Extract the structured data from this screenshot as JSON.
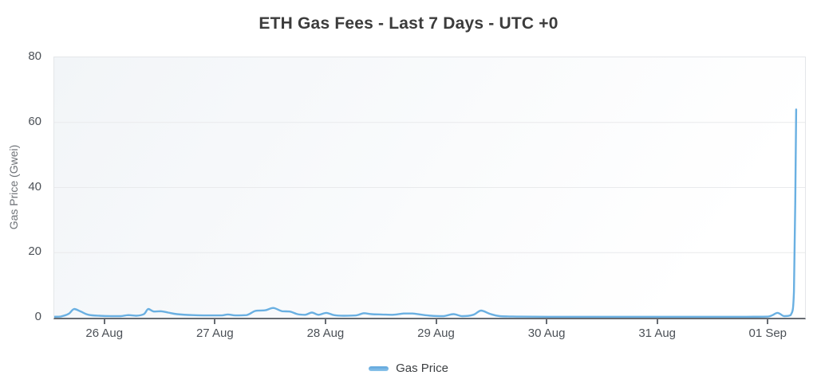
{
  "chart_data": {
    "type": "line",
    "title": "ETH Gas Fees - Last 7 Days - UTC +0",
    "ylabel": "Gas Price (Gwei)",
    "xlabel": "",
    "y_ticks": [
      0,
      20,
      40,
      60,
      80
    ],
    "y_range": [
      0,
      80
    ],
    "x_range_days": [
      -0.46,
      6.33
    ],
    "x_ticks": {
      "positions": [
        0,
        1,
        2,
        3,
        4,
        5,
        6
      ],
      "labels": [
        "26 Aug",
        "27 Aug",
        "28 Aug",
        "29 Aug",
        "30 Aug",
        "31 Aug",
        "01 Sep"
      ]
    },
    "grid": "horizontal-only",
    "legend_position": "bottom-center",
    "series": [
      {
        "name": "Gas Price",
        "color": "#6ab0e2",
        "points_day_gwei": [
          [
            -0.46,
            0.3
          ],
          [
            -0.4,
            0.4
          ],
          [
            -0.33,
            1.2
          ],
          [
            -0.28,
            2.7
          ],
          [
            -0.22,
            1.9
          ],
          [
            -0.15,
            0.9
          ],
          [
            -0.05,
            0.6
          ],
          [
            0.05,
            0.5
          ],
          [
            0.14,
            0.5
          ],
          [
            0.21,
            0.8
          ],
          [
            0.28,
            0.6
          ],
          [
            0.35,
            1.1
          ],
          [
            0.39,
            2.7
          ],
          [
            0.44,
            1.9
          ],
          [
            0.5,
            2.0
          ],
          [
            0.57,
            1.6
          ],
          [
            0.65,
            1.1
          ],
          [
            0.79,
            0.8
          ],
          [
            0.93,
            0.7
          ],
          [
            1.05,
            0.7
          ],
          [
            1.11,
            1.0
          ],
          [
            1.18,
            0.7
          ],
          [
            1.28,
            0.8
          ],
          [
            1.36,
            2.1
          ],
          [
            1.45,
            2.3
          ],
          [
            1.52,
            3.0
          ],
          [
            1.6,
            2.0
          ],
          [
            1.67,
            1.9
          ],
          [
            1.74,
            1.1
          ],
          [
            1.81,
            0.9
          ],
          [
            1.87,
            1.6
          ],
          [
            1.93,
            0.9
          ],
          [
            2.0,
            1.5
          ],
          [
            2.07,
            0.8
          ],
          [
            2.16,
            0.6
          ],
          [
            2.27,
            0.7
          ],
          [
            2.34,
            1.4
          ],
          [
            2.41,
            1.1
          ],
          [
            2.5,
            1.0
          ],
          [
            2.6,
            0.9
          ],
          [
            2.7,
            1.3
          ],
          [
            2.78,
            1.3
          ],
          [
            2.85,
            1.0
          ],
          [
            2.95,
            0.6
          ],
          [
            3.06,
            0.5
          ],
          [
            3.15,
            1.1
          ],
          [
            3.23,
            0.5
          ],
          [
            3.33,
            0.9
          ],
          [
            3.4,
            2.2
          ],
          [
            3.48,
            1.2
          ],
          [
            3.57,
            0.5
          ],
          [
            3.75,
            0.35
          ],
          [
            4.0,
            0.3
          ],
          [
            4.3,
            0.3
          ],
          [
            4.6,
            0.3
          ],
          [
            5.0,
            0.3
          ],
          [
            5.4,
            0.3
          ],
          [
            5.8,
            0.3
          ],
          [
            6.0,
            0.4
          ],
          [
            6.08,
            1.5
          ],
          [
            6.14,
            0.5
          ],
          [
            6.2,
            0.8
          ],
          [
            6.23,
            8
          ],
          [
            6.25,
            64
          ]
        ]
      }
    ]
  },
  "colors": {
    "title": "#3c3c3c",
    "axis_label": "#4c5157",
    "y_axis_title": "#6f7378",
    "grid_line": "#e9eaec",
    "plot_border": "#e4e6e9",
    "x_axis_line": "#686c72",
    "line": "#6ab0e2",
    "plot_bg_from": "#f2f5f8",
    "plot_bg_to": "#ffffff"
  }
}
